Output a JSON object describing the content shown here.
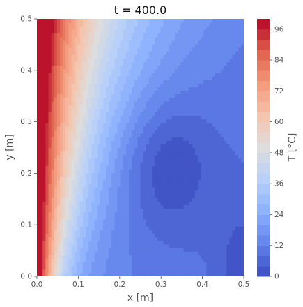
{
  "chart_data": {
    "type": "heatmap",
    "subtype": "filled-contour",
    "title": "t = 400.0",
    "xlabel": "x [m]",
    "ylabel": "y [m]",
    "xlim": [
      0,
      0.5
    ],
    "ylim": [
      0,
      0.5
    ],
    "x_ticks": [
      "0.0",
      "0.1",
      "0.2",
      "0.3",
      "0.4",
      "0.5"
    ],
    "y_ticks": [
      "0.0",
      "0.1",
      "0.2",
      "0.3",
      "0.4",
      "0.5"
    ],
    "colorbar": {
      "label": "T [°C]",
      "min": 0,
      "max": 100,
      "levels": 25,
      "ticks": [
        "0",
        "12",
        "24",
        "36",
        "48",
        "60",
        "72",
        "84",
        "96"
      ],
      "colormap": "coolwarm"
    },
    "field_description": "Hot boundary along the left edge (x=0), hottest at top-left corner (~100 °C); cold core near x=0.3, y=0.22 (~2 °C); cold pocket at bottom-right corner.",
    "grid": false
  }
}
